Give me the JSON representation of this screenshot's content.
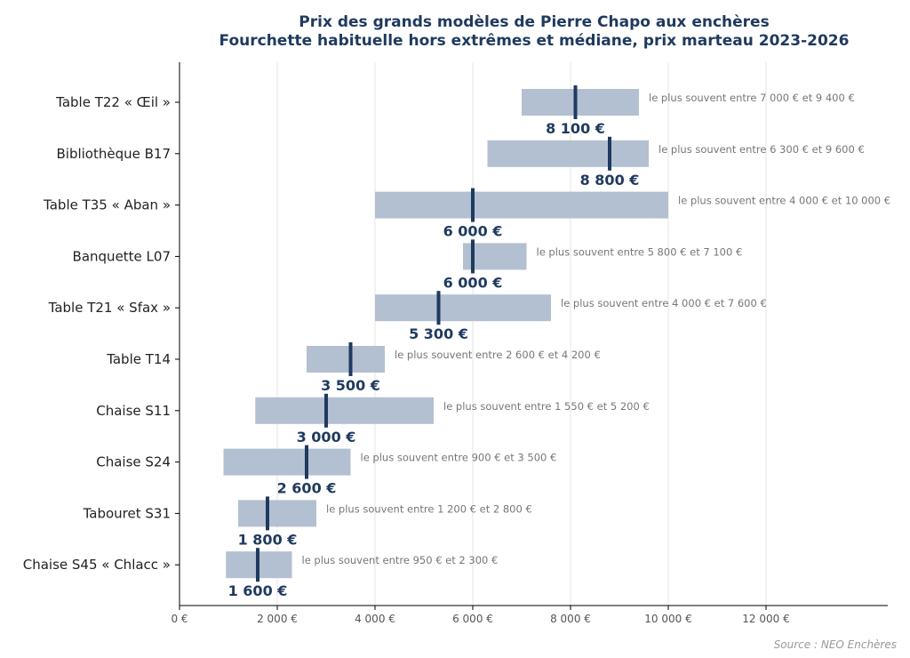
{
  "chart_data": {
    "type": "bar",
    "title": "Prix des grands modèles de Pierre Chapo aux enchères",
    "subtitle": "Fourchette habituelle hors extrêmes et médiane, prix marteau 2023-2026",
    "xlabel": "",
    "ylabel": "",
    "xlim": [
      0,
      14500
    ],
    "x_ticks": [
      0,
      2000,
      4000,
      6000,
      8000,
      10000,
      12000
    ],
    "x_tick_labels": [
      "0 €",
      "2 000 €",
      "4 000 €",
      "6 000 €",
      "8 000 €",
      "10 000 €",
      "12 000 €"
    ],
    "grid": "vertical",
    "source": "Source : NEO Enchères",
    "colors": {
      "range": "#b3c0d1",
      "median": "#1f3a5f",
      "annotation": "#777777",
      "title": "#1f3a5f"
    },
    "items": [
      {
        "label": "Table T22 « Œil »",
        "low": 7000,
        "high": 9400,
        "median": 8100,
        "median_label": "8 100 €",
        "note": "le plus souvent entre 7 000 € et 9 400 €"
      },
      {
        "label": "Bibliothèque B17",
        "low": 6300,
        "high": 9600,
        "median": 8800,
        "median_label": "8 800 €",
        "note": "le plus souvent entre 6 300 € et 9 600 €"
      },
      {
        "label": "Table T35 « Aban »",
        "low": 4000,
        "high": 10000,
        "median": 6000,
        "median_label": "6 000 €",
        "note": "le plus souvent entre 4 000 € et 10 000 €"
      },
      {
        "label": "Banquette L07",
        "low": 5800,
        "high": 7100,
        "median": 6000,
        "median_label": "6 000 €",
        "note": "le plus souvent entre 5 800 € et 7 100 €"
      },
      {
        "label": "Table T21 « Sfax »",
        "low": 4000,
        "high": 7600,
        "median": 5300,
        "median_label": "5 300 €",
        "note": "le plus souvent entre 4 000 € et 7 600 €"
      },
      {
        "label": "Table T14",
        "low": 2600,
        "high": 4200,
        "median": 3500,
        "median_label": "3 500 €",
        "note": "le plus souvent entre 2 600 € et 4 200 €"
      },
      {
        "label": "Chaise S11",
        "low": 1550,
        "high": 5200,
        "median": 3000,
        "median_label": "3 000 €",
        "note": "le plus souvent entre 1 550 € et 5 200 €"
      },
      {
        "label": "Chaise S24",
        "low": 900,
        "high": 3500,
        "median": 2600,
        "median_label": "2 600 €",
        "note": "le plus souvent entre 900 € et 3 500 €"
      },
      {
        "label": "Tabouret S31",
        "low": 1200,
        "high": 2800,
        "median": 1800,
        "median_label": "1 800 €",
        "note": "le plus souvent entre 1 200 € et 2 800 €"
      },
      {
        "label": "Chaise S45 « Chlacc »",
        "low": 950,
        "high": 2300,
        "median": 1600,
        "median_label": "1 600 €",
        "note": "le plus souvent entre 950 € et 2 300 €"
      }
    ]
  }
}
